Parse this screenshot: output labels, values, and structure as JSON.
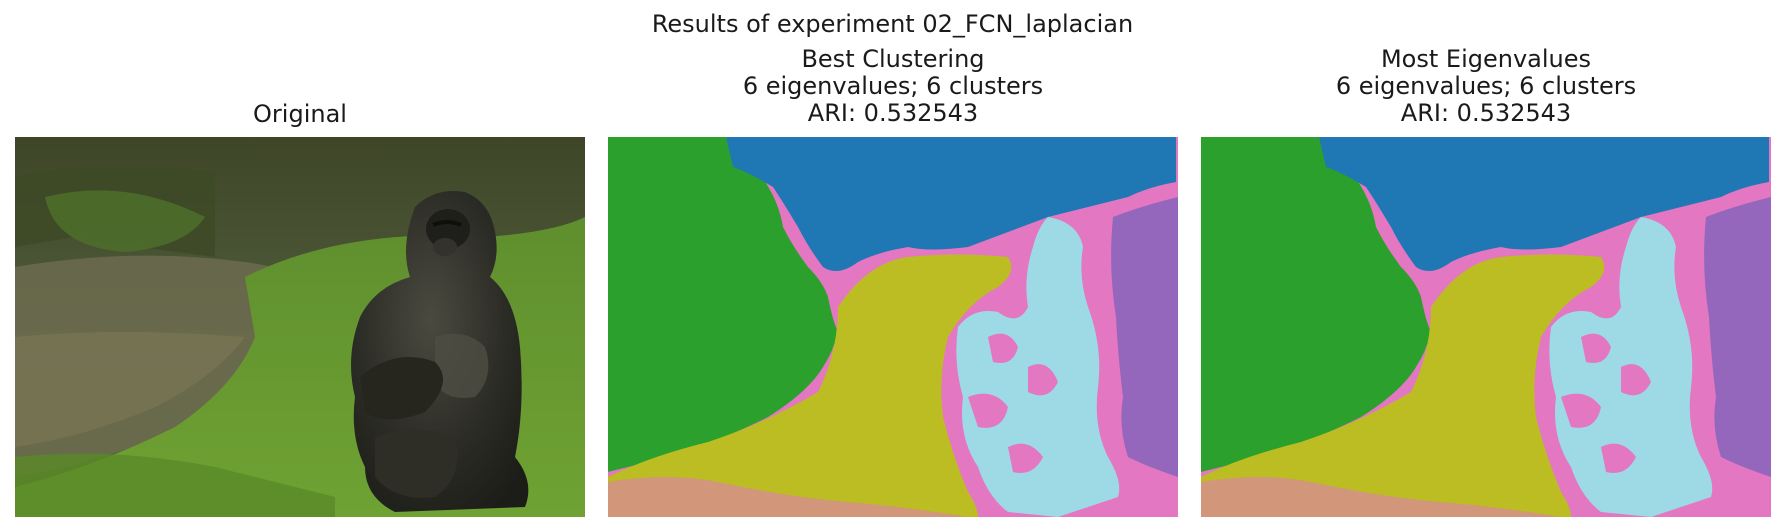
{
  "figure": {
    "suptitle": "Results of experiment 02_FCN_laplacian"
  },
  "panels": [
    {
      "title_lines": [
        "Original"
      ],
      "image": "photo of a gorilla sitting on green grass"
    },
    {
      "title_lines": [
        "Best Clustering",
        "6 eigenvalues; 6 clusters",
        "ARI: 0.532543"
      ],
      "image": "cluster label map"
    },
    {
      "title_lines": [
        "Most Eigenvalues",
        "6 eigenvalues; 6 clusters",
        "ARI: 0.532543"
      ],
      "image": "cluster label map"
    }
  ],
  "cluster_colors": {
    "sky": "#1f77b4",
    "grass": "#2ca02c",
    "ground": "#bcbd22",
    "body": "#e377c2",
    "highlight": "#9edae5",
    "right_edge": "#9467bd"
  }
}
